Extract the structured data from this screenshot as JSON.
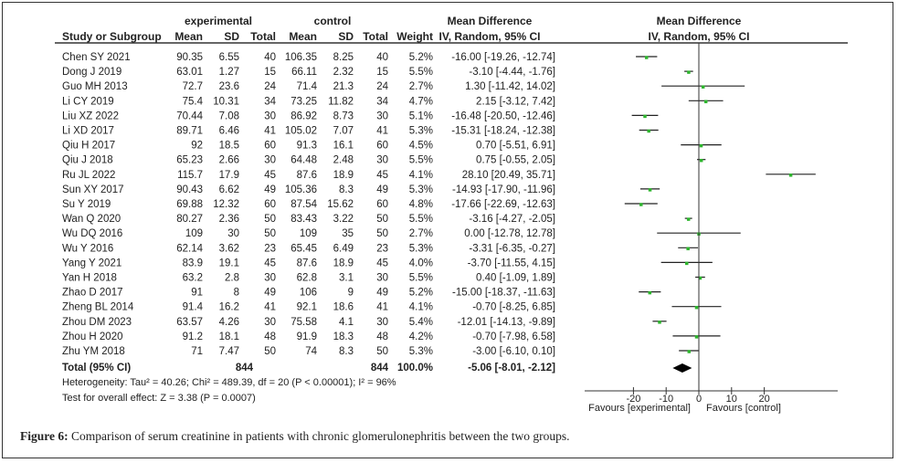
{
  "chart_data": {
    "type": "forest",
    "group_headers": {
      "experimental": "experimental",
      "control": "control"
    },
    "columns": [
      "Study or Subgroup",
      "Mean",
      "SD",
      "Total",
      "Mean",
      "SD",
      "Total",
      "Weight",
      "IV, Random, 95% CI"
    ],
    "effect_header": "Mean Difference",
    "plot_header": [
      "Mean Difference",
      "IV, Random, 95% CI"
    ],
    "studies": [
      {
        "name": "Chen SY 2021",
        "e_mean": "90.35",
        "e_sd": "6.55",
        "e_n": "40",
        "c_mean": "106.35",
        "c_sd": "8.25",
        "c_n": "40",
        "weight": "5.2%",
        "ci_text": "-16.00 [-19.26, -12.74]",
        "md": -16.0,
        "lo": -19.26,
        "hi": -12.74
      },
      {
        "name": "Dong J  2019",
        "e_mean": "63.01",
        "e_sd": "1.27",
        "e_n": "15",
        "c_mean": "66.11",
        "c_sd": "2.32",
        "c_n": "15",
        "weight": "5.5%",
        "ci_text": "-3.10 [-4.44, -1.76]",
        "md": -3.1,
        "lo": -4.44,
        "hi": -1.76
      },
      {
        "name": "Guo MH 2013",
        "e_mean": "72.7",
        "e_sd": "23.6",
        "e_n": "24",
        "c_mean": "71.4",
        "c_sd": "21.3",
        "c_n": "24",
        "weight": "2.7%",
        "ci_text": "1.30 [-11.42, 14.02]",
        "md": 1.3,
        "lo": -11.42,
        "hi": 14.02
      },
      {
        "name": "Li CY 2019",
        "e_mean": "75.4",
        "e_sd": "10.31",
        "e_n": "34",
        "c_mean": "73.25",
        "c_sd": "11.82",
        "c_n": "34",
        "weight": "4.7%",
        "ci_text": "2.15 [-3.12, 7.42]",
        "md": 2.15,
        "lo": -3.12,
        "hi": 7.42
      },
      {
        "name": "Liu XZ 2022",
        "e_mean": "70.44",
        "e_sd": "7.08",
        "e_n": "30",
        "c_mean": "86.92",
        "c_sd": "8.73",
        "c_n": "30",
        "weight": "5.1%",
        "ci_text": "-16.48 [-20.50, -12.46]",
        "md": -16.48,
        "lo": -20.5,
        "hi": -12.46
      },
      {
        "name": "Li XD 2017",
        "e_mean": "89.71",
        "e_sd": "6.46",
        "e_n": "41",
        "c_mean": "105.02",
        "c_sd": "7.07",
        "c_n": "41",
        "weight": "5.3%",
        "ci_text": "-15.31 [-18.24, -12.38]",
        "md": -15.31,
        "lo": -18.24,
        "hi": -12.38
      },
      {
        "name": "Qiu H 2017",
        "e_mean": "92",
        "e_sd": "18.5",
        "e_n": "60",
        "c_mean": "91.3",
        "c_sd": "16.1",
        "c_n": "60",
        "weight": "4.5%",
        "ci_text": "0.70 [-5.51, 6.91]",
        "md": 0.7,
        "lo": -5.51,
        "hi": 6.91
      },
      {
        "name": "Qiu J 2018",
        "e_mean": "65.23",
        "e_sd": "2.66",
        "e_n": "30",
        "c_mean": "64.48",
        "c_sd": "2.48",
        "c_n": "30",
        "weight": "5.5%",
        "ci_text": "0.75 [-0.55, 2.05]",
        "md": 0.75,
        "lo": -0.55,
        "hi": 2.05
      },
      {
        "name": "Ru JL 2022",
        "e_mean": "115.7",
        "e_sd": "17.9",
        "e_n": "45",
        "c_mean": "87.6",
        "c_sd": "18.9",
        "c_n": "45",
        "weight": "4.1%",
        "ci_text": "28.10 [20.49, 35.71]",
        "md": 28.1,
        "lo": 20.49,
        "hi": 35.71
      },
      {
        "name": "Sun XY 2017",
        "e_mean": "90.43",
        "e_sd": "6.62",
        "e_n": "49",
        "c_mean": "105.36",
        "c_sd": "8.3",
        "c_n": "49",
        "weight": "5.3%",
        "ci_text": "-14.93 [-17.90, -11.96]",
        "md": -14.93,
        "lo": -17.9,
        "hi": -11.96
      },
      {
        "name": "Su Y 2019",
        "e_mean": "69.88",
        "e_sd": "12.32",
        "e_n": "60",
        "c_mean": "87.54",
        "c_sd": "15.62",
        "c_n": "60",
        "weight": "4.8%",
        "ci_text": "-17.66 [-22.69, -12.63]",
        "md": -17.66,
        "lo": -22.69,
        "hi": -12.63
      },
      {
        "name": "Wan Q 2020",
        "e_mean": "80.27",
        "e_sd": "2.36",
        "e_n": "50",
        "c_mean": "83.43",
        "c_sd": "3.22",
        "c_n": "50",
        "weight": "5.5%",
        "ci_text": "-3.16 [-4.27, -2.05]",
        "md": -3.16,
        "lo": -4.27,
        "hi": -2.05
      },
      {
        "name": "Wu DQ 2016",
        "e_mean": "109",
        "e_sd": "30",
        "e_n": "50",
        "c_mean": "109",
        "c_sd": "35",
        "c_n": "50",
        "weight": "2.7%",
        "ci_text": "0.00 [-12.78, 12.78]",
        "md": 0.0,
        "lo": -12.78,
        "hi": 12.78
      },
      {
        "name": "Wu Y  2016",
        "e_mean": "62.14",
        "e_sd": "3.62",
        "e_n": "23",
        "c_mean": "65.45",
        "c_sd": "6.49",
        "c_n": "23",
        "weight": "5.3%",
        "ci_text": "-3.31 [-6.35, -0.27]",
        "md": -3.31,
        "lo": -6.35,
        "hi": -0.27
      },
      {
        "name": "Yang Y 2021",
        "e_mean": "83.9",
        "e_sd": "19.1",
        "e_n": "45",
        "c_mean": "87.6",
        "c_sd": "18.9",
        "c_n": "45",
        "weight": "4.0%",
        "ci_text": "-3.70 [-11.55, 4.15]",
        "md": -3.7,
        "lo": -11.55,
        "hi": 4.15
      },
      {
        "name": "Yan H 2018",
        "e_mean": "63.2",
        "e_sd": "2.8",
        "e_n": "30",
        "c_mean": "62.8",
        "c_sd": "3.1",
        "c_n": "30",
        "weight": "5.5%",
        "ci_text": "0.40 [-1.09, 1.89]",
        "md": 0.4,
        "lo": -1.09,
        "hi": 1.89
      },
      {
        "name": "Zhao D 2017",
        "e_mean": "91",
        "e_sd": "8",
        "e_n": "49",
        "c_mean": "106",
        "c_sd": "9",
        "c_n": "49",
        "weight": "5.2%",
        "ci_text": "-15.00 [-18.37, -11.63]",
        "md": -15.0,
        "lo": -18.37,
        "hi": -11.63
      },
      {
        "name": "Zheng BL 2014",
        "e_mean": "91.4",
        "e_sd": "16.2",
        "e_n": "41",
        "c_mean": "92.1",
        "c_sd": "18.6",
        "c_n": "41",
        "weight": "4.1%",
        "ci_text": "-0.70 [-8.25, 6.85]",
        "md": -0.7,
        "lo": -8.25,
        "hi": 6.85
      },
      {
        "name": "Zhou DM 2023",
        "e_mean": "63.57",
        "e_sd": "4.26",
        "e_n": "30",
        "c_mean": "75.58",
        "c_sd": "4.1",
        "c_n": "30",
        "weight": "5.4%",
        "ci_text": "-12.01 [-14.13, -9.89]",
        "md": -12.01,
        "lo": -14.13,
        "hi": -9.89
      },
      {
        "name": "Zhou H 2020",
        "e_mean": "91.2",
        "e_sd": "18.1",
        "e_n": "48",
        "c_mean": "91.9",
        "c_sd": "18.3",
        "c_n": "48",
        "weight": "4.2%",
        "ci_text": "-0.70 [-7.98, 6.58]",
        "md": -0.7,
        "lo": -7.98,
        "hi": 6.58
      },
      {
        "name": "Zhu YM 2018",
        "e_mean": "71",
        "e_sd": "7.47",
        "e_n": "50",
        "c_mean": "74",
        "c_sd": "8.3",
        "c_n": "50",
        "weight": "5.3%",
        "ci_text": "-3.00 [-6.10, 0.10]",
        "md": -3.0,
        "lo": -6.1,
        "hi": 0.1
      }
    ],
    "total": {
      "label": "Total (95% CI)",
      "e_n": "844",
      "c_n": "844",
      "weight": "100.0%",
      "ci_text": "-5.06 [-8.01, -2.12]",
      "md": -5.06,
      "lo": -8.01,
      "hi": -2.12
    },
    "heterogeneity": "Heterogeneity: Tau² = 40.26; Chi² = 489.39, df = 20 (P < 0.00001); I² = 96%",
    "overall_effect": "Test for overall effect: Z = 3.38 (P = 0.0007)",
    "x_ticks": [
      -20,
      -10,
      0,
      10,
      20
    ],
    "x_tick_labels": [
      "-20",
      "-10",
      "0",
      "10",
      "20"
    ],
    "xlim": [
      -35,
      42
    ],
    "xlabel_left": "Favours [experimental]",
    "xlabel_right": "Favours [control]",
    "colors": {
      "study_marker": "#2db52d",
      "ci_line": "#222222",
      "diamond": "#000000"
    }
  },
  "caption": {
    "label": "Figure 6:",
    "text": " Comparison of serum creatinine in patients with chronic glomerulonephritis between the two groups."
  }
}
